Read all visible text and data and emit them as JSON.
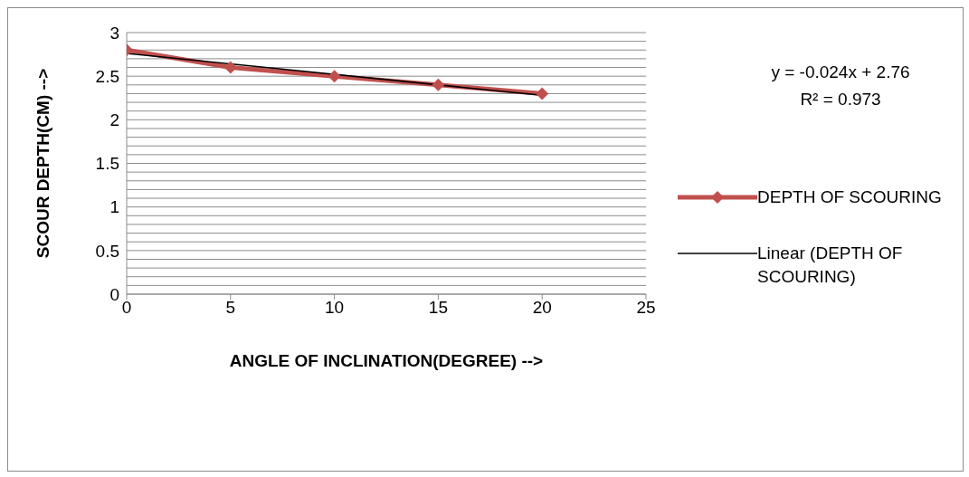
{
  "chart_data": {
    "type": "line",
    "xlabel": "ANGLE OF INCLINATION(DEGREE)  -->",
    "ylabel": "SCOUR DEPTH(CM)  -->",
    "series": [
      {
        "name": "DEPTH OF SCOURING",
        "color": "#c0504d",
        "x": [
          0,
          5,
          10,
          15,
          20
        ],
        "values": [
          2.8,
          2.6,
          2.5,
          2.4,
          2.3
        ],
        "marker": "diamond"
      },
      {
        "name": "Linear (DEPTH OF SCOURING)",
        "type": "line",
        "color": "#000000",
        "x": [
          0,
          20
        ],
        "values": [
          2.76,
          2.28
        ],
        "marker": "none"
      }
    ],
    "annotations": [
      "y = -0.024x + 2.76",
      "R² = 0.973"
    ],
    "xlim": [
      0,
      25
    ],
    "xticks": [
      0,
      5,
      10,
      15,
      20,
      25
    ],
    "ylim": [
      0,
      3
    ],
    "yticks": [
      0,
      {
        "value": 0.1,
        "label": null
      },
      {
        "value": 0.2,
        "label": null
      },
      {
        "value": 0.3,
        "label": null
      },
      {
        "value": 0.4,
        "label": null
      },
      0.5,
      {
        "value": 0.6,
        "label": null
      },
      {
        "value": 0.7,
        "label": null
      },
      {
        "value": 0.8,
        "label": null
      },
      {
        "value": 0.9,
        "label": null
      },
      1,
      {
        "value": 1.1,
        "label": null
      },
      {
        "value": 1.2,
        "label": null
      },
      {
        "value": 1.3,
        "label": null
      },
      {
        "value": 1.4,
        "label": null
      },
      1.5,
      {
        "value": 1.6,
        "label": null
      },
      {
        "value": 1.7,
        "label": null
      },
      {
        "value": 1.8,
        "label": null
      },
      {
        "value": 1.9,
        "label": null
      },
      2,
      {
        "value": 2.1,
        "label": null
      },
      {
        "value": 2.2,
        "label": null
      },
      {
        "value": 2.3,
        "label": null
      },
      {
        "value": 2.4,
        "label": null
      },
      2.5,
      {
        "value": 2.6,
        "label": null
      },
      {
        "value": 2.7,
        "label": null
      },
      {
        "value": 2.8,
        "label": null
      },
      {
        "value": 2.9,
        "label": null
      },
      3
    ],
    "grid": "y",
    "legend": "right",
    "line_style": "solid"
  }
}
